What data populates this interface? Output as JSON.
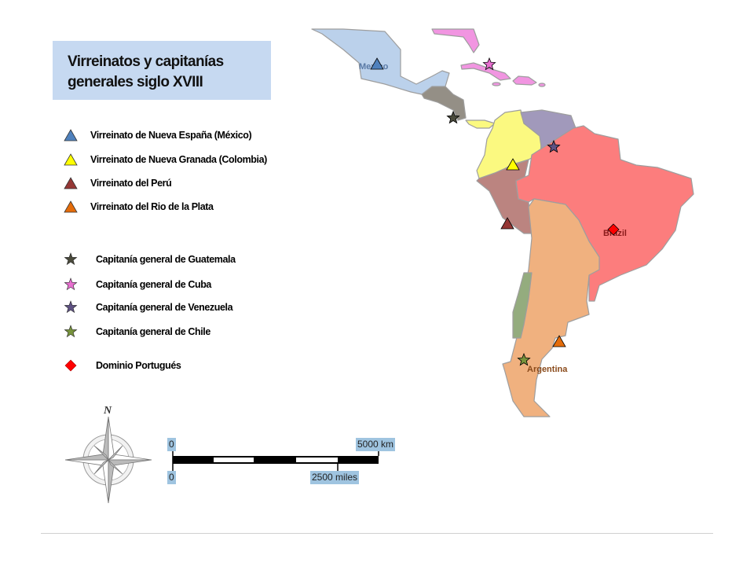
{
  "title": "Virreinatos y capitanías generales siglo XVIII",
  "legend": {
    "viceroyalties": [
      {
        "label": "Virreinato de Nueva España (México)",
        "marker": "triangle",
        "color": "#4f81bd"
      },
      {
        "label": "Virreinato de Nueva Granada (Colombia)",
        "marker": "triangle",
        "color": "#ffff00"
      },
      {
        "label": "Virreinato del Perú",
        "marker": "triangle",
        "color": "#953735"
      },
      {
        "label": "Virreinato del Rio de la Plata",
        "marker": "triangle",
        "color": "#e46c0a"
      }
    ],
    "captaincies": [
      {
        "label": "Capitanía general de Guatemala",
        "marker": "star",
        "color": "#4a4a3c"
      },
      {
        "label": "Capitanía general de Cuba",
        "marker": "star",
        "color": "#e86fd0"
      },
      {
        "label": "Capitanía general de Venezuela",
        "marker": "star",
        "color": "#5f5283"
      },
      {
        "label": "Capitanía general de Chile",
        "marker": "star",
        "color": "#77933c"
      }
    ],
    "portuguese": {
      "label": "Dominio Portugués",
      "marker": "diamond",
      "color": "#ff0000"
    }
  },
  "map": {
    "labels": {
      "mexico": "Mexico",
      "brazil": "Brazil",
      "argentina": "Argentina"
    },
    "region_colors": {
      "nueva_espana": "#b8cfea",
      "guatemala": "#8f8a80",
      "nueva_granada": "#fbf97a",
      "venezuela": "#9c94b8",
      "peru": "#b87e7a",
      "rio_de_la_plata": "#f0ad79",
      "chile": "#8fa878",
      "cuba": "#f190e0",
      "brasil": "#fc7777"
    }
  },
  "compass": {
    "north": "N"
  },
  "scale": {
    "zero_km": "0",
    "km": "5000 km",
    "zero_mi": "0",
    "miles": "2500 miles"
  }
}
